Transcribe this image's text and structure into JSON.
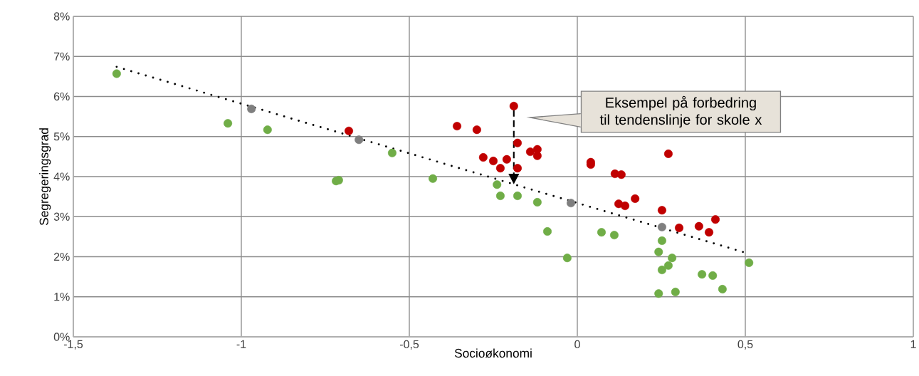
{
  "chart_data": {
    "type": "scatter",
    "xlabel": "Socioøkonomi",
    "ylabel": "Segregeringsgrad",
    "xlim": [
      -1.5,
      1
    ],
    "ylim": [
      0,
      8
    ],
    "xticks": [
      {
        "value": -1.5,
        "label": "-1,5"
      },
      {
        "value": -1,
        "label": "-1"
      },
      {
        "value": -0.5,
        "label": "-0,5"
      },
      {
        "value": 0,
        "label": "0"
      },
      {
        "value": 0.5,
        "label": "0,5"
      },
      {
        "value": 1,
        "label": "1"
      }
    ],
    "yticks": [
      {
        "value": 0,
        "label": "0%"
      },
      {
        "value": 1,
        "label": "1%"
      },
      {
        "value": 2,
        "label": "2%"
      },
      {
        "value": 3,
        "label": "3%"
      },
      {
        "value": 4,
        "label": "4%"
      },
      {
        "value": 5,
        "label": "5%"
      },
      {
        "value": 6,
        "label": "6%"
      },
      {
        "value": 7,
        "label": "7%"
      },
      {
        "value": 8,
        "label": "8%"
      }
    ],
    "grid": true,
    "series": [
      {
        "color": "#70ad47",
        "marker": "circle",
        "x": [
          -1.371,
          -1.04,
          -0.922,
          -0.718,
          -0.71,
          -0.551,
          -0.43,
          -0.239,
          -0.229,
          -0.178,
          -0.119,
          -0.089,
          -0.03,
          0.072,
          0.11,
          0.252,
          0.242,
          0.282,
          0.271,
          0.252,
          0.242,
          0.292,
          0.371,
          0.403,
          0.432,
          0.511
        ],
        "values": [
          6.57,
          5.33,
          5.17,
          3.89,
          3.91,
          4.59,
          3.95,
          3.8,
          3.52,
          3.52,
          3.36,
          2.63,
          1.97,
          2.61,
          2.54,
          2.4,
          2.12,
          1.97,
          1.78,
          1.67,
          1.08,
          1.12,
          1.56,
          1.53,
          1.19,
          1.85
        ]
      },
      {
        "color": "#c00000",
        "marker": "circle",
        "x": [
          -0.68,
          -0.358,
          -0.299,
          -0.189,
          -0.178,
          -0.28,
          -0.25,
          -0.21,
          -0.229,
          -0.178,
          -0.14,
          -0.119,
          -0.119,
          0.04,
          0.04,
          0.112,
          0.131,
          0.172,
          0.123,
          0.142,
          0.271,
          0.252,
          0.303,
          0.362,
          0.392,
          0.411
        ],
        "values": [
          5.14,
          5.26,
          5.17,
          5.76,
          4.84,
          4.48,
          4.39,
          4.43,
          4.21,
          4.21,
          4.62,
          4.68,
          4.52,
          4.36,
          4.3,
          4.07,
          4.05,
          3.45,
          3.32,
          3.27,
          4.57,
          3.16,
          2.72,
          2.76,
          2.61,
          2.93
        ]
      },
      {
        "color": "#7f7f7f",
        "marker": "circle",
        "x": [
          -0.97,
          -0.65,
          -0.019,
          0.252
        ],
        "values": [
          5.69,
          4.92,
          3.34,
          2.74
        ]
      },
      {
        "type": "line",
        "color": "#000000",
        "line_style": "dotted",
        "marker": "none",
        "x": [
          -1.371,
          0.5
        ],
        "values": [
          6.74,
          2.1
        ]
      }
    ],
    "annotations": [
      "Eksempel på forbedring til tendenslinje for skole x"
    ]
  }
}
